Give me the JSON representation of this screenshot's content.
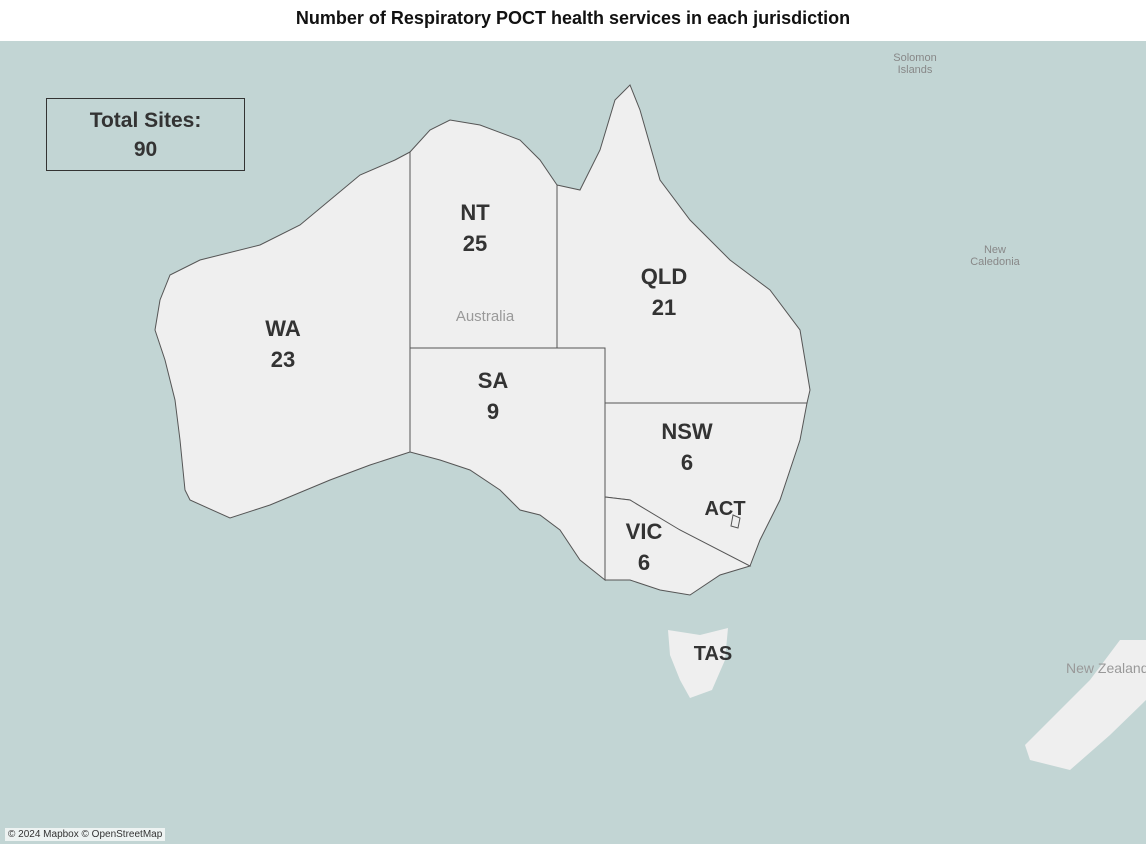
{
  "title": "Number of Respiratory POCT health services in each jurisdiction",
  "summary": {
    "label": "Total Sites:",
    "value": 90
  },
  "regions": [
    {
      "name": "WA",
      "sites": 23
    },
    {
      "name": "NT",
      "sites": 25
    },
    {
      "name": "QLD",
      "sites": 21
    },
    {
      "name": "SA",
      "sites": 9
    },
    {
      "name": "NSW",
      "sites": 6
    },
    {
      "name": "VIC",
      "sites": 6
    },
    {
      "name": "ACT"
    },
    {
      "name": "TAS"
    }
  ],
  "places": [
    "Australia",
    "Solomon Islands",
    "New Caledonia",
    "New Zealand"
  ],
  "attribution": "© 2024 Mapbox © OpenStreetMap"
}
